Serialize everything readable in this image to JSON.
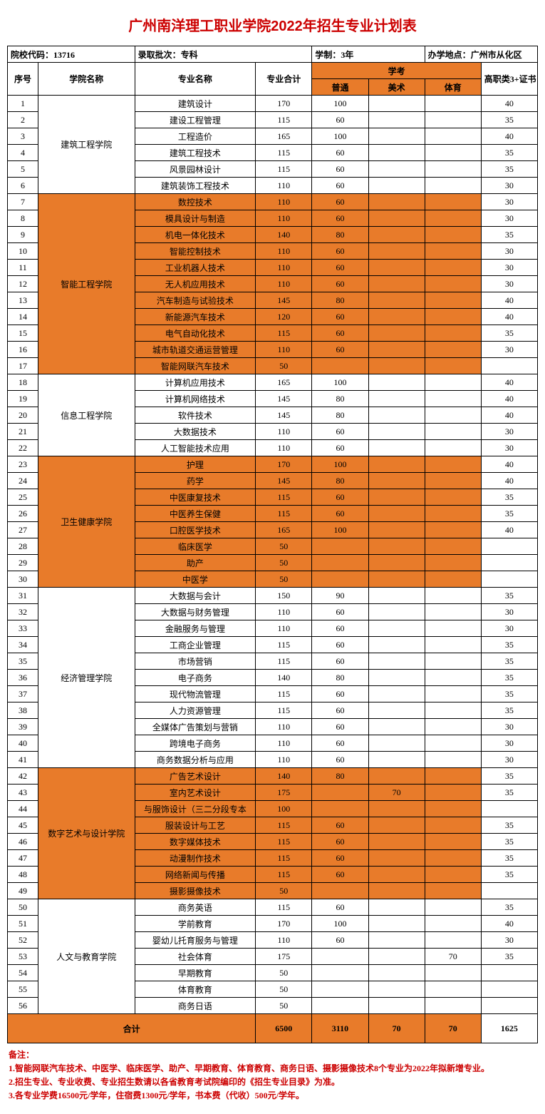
{
  "title": "广州南洋理工职业学院2022年招生专业计划表",
  "info": {
    "code_label": "院校代码：",
    "code": "13716",
    "batch_label": "录取批次：",
    "batch": "专科",
    "duration_label": "学制：",
    "duration": "3年",
    "location_label": "办学地点：",
    "location": "广州市从化区"
  },
  "headers": {
    "idx": "序号",
    "dept": "学院名称",
    "major": "专业名称",
    "total": "专业合计",
    "xuekao": "学考",
    "putong": "普通",
    "meishu": "美术",
    "tiyu": "体育",
    "cert": "高职类3+证书"
  },
  "depts": [
    {
      "name": "建筑工程学院",
      "hl": false,
      "rows": [
        {
          "i": "1",
          "m": "建筑设计",
          "t": "170",
          "p": "100",
          "ms": "",
          "ty": "",
          "c": "40"
        },
        {
          "i": "2",
          "m": "建设工程管理",
          "t": "115",
          "p": "60",
          "ms": "",
          "ty": "",
          "c": "35"
        },
        {
          "i": "3",
          "m": "工程造价",
          "t": "165",
          "p": "100",
          "ms": "",
          "ty": "",
          "c": "40"
        },
        {
          "i": "4",
          "m": "建筑工程技术",
          "t": "115",
          "p": "60",
          "ms": "",
          "ty": "",
          "c": "35"
        },
        {
          "i": "5",
          "m": "风景园林设计",
          "t": "115",
          "p": "60",
          "ms": "",
          "ty": "",
          "c": "35"
        },
        {
          "i": "6",
          "m": "建筑装饰工程技术",
          "t": "110",
          "p": "60",
          "ms": "",
          "ty": "",
          "c": "30"
        }
      ]
    },
    {
      "name": "智能工程学院",
      "hl": true,
      "rows": [
        {
          "i": "7",
          "m": "数控技术",
          "t": "110",
          "p": "60",
          "ms": "",
          "ty": "",
          "c": "30"
        },
        {
          "i": "8",
          "m": "模具设计与制造",
          "t": "110",
          "p": "60",
          "ms": "",
          "ty": "",
          "c": "30"
        },
        {
          "i": "9",
          "m": "机电一体化技术",
          "t": "140",
          "p": "80",
          "ms": "",
          "ty": "",
          "c": "35"
        },
        {
          "i": "10",
          "m": "智能控制技术",
          "t": "110",
          "p": "60",
          "ms": "",
          "ty": "",
          "c": "30"
        },
        {
          "i": "11",
          "m": "工业机器人技术",
          "t": "110",
          "p": "60",
          "ms": "",
          "ty": "",
          "c": "30"
        },
        {
          "i": "12",
          "m": "无人机应用技术",
          "t": "110",
          "p": "60",
          "ms": "",
          "ty": "",
          "c": "30"
        },
        {
          "i": "13",
          "m": "汽车制造与试验技术",
          "t": "145",
          "p": "80",
          "ms": "",
          "ty": "",
          "c": "40"
        },
        {
          "i": "14",
          "m": "新能源汽车技术",
          "t": "120",
          "p": "60",
          "ms": "",
          "ty": "",
          "c": "40"
        },
        {
          "i": "15",
          "m": "电气自动化技术",
          "t": "115",
          "p": "60",
          "ms": "",
          "ty": "",
          "c": "35"
        },
        {
          "i": "16",
          "m": "城市轨道交通运营管理",
          "t": "110",
          "p": "60",
          "ms": "",
          "ty": "",
          "c": "30"
        },
        {
          "i": "17",
          "m": "智能网联汽车技术",
          "t": "50",
          "p": "",
          "ms": "",
          "ty": "",
          "c": ""
        }
      ]
    },
    {
      "name": "信息工程学院",
      "hl": false,
      "rows": [
        {
          "i": "18",
          "m": "计算机应用技术",
          "t": "165",
          "p": "100",
          "ms": "",
          "ty": "",
          "c": "40"
        },
        {
          "i": "19",
          "m": "计算机网络技术",
          "t": "145",
          "p": "80",
          "ms": "",
          "ty": "",
          "c": "40"
        },
        {
          "i": "20",
          "m": "软件技术",
          "t": "145",
          "p": "80",
          "ms": "",
          "ty": "",
          "c": "40"
        },
        {
          "i": "21",
          "m": "大数据技术",
          "t": "110",
          "p": "60",
          "ms": "",
          "ty": "",
          "c": "30"
        },
        {
          "i": "22",
          "m": "人工智能技术应用",
          "t": "110",
          "p": "60",
          "ms": "",
          "ty": "",
          "c": "30"
        }
      ]
    },
    {
      "name": "卫生健康学院",
      "hl": true,
      "rows": [
        {
          "i": "23",
          "m": "护理",
          "t": "170",
          "p": "100",
          "ms": "",
          "ty": "",
          "c": "40"
        },
        {
          "i": "24",
          "m": "药学",
          "t": "145",
          "p": "80",
          "ms": "",
          "ty": "",
          "c": "40"
        },
        {
          "i": "25",
          "m": "中医康复技术",
          "t": "115",
          "p": "60",
          "ms": "",
          "ty": "",
          "c": "35"
        },
        {
          "i": "26",
          "m": "中医养生保健",
          "t": "115",
          "p": "60",
          "ms": "",
          "ty": "",
          "c": "35"
        },
        {
          "i": "27",
          "m": "口腔医学技术",
          "t": "165",
          "p": "100",
          "ms": "",
          "ty": "",
          "c": "40"
        },
        {
          "i": "28",
          "m": "临床医学",
          "t": "50",
          "p": "",
          "ms": "",
          "ty": "",
          "c": ""
        },
        {
          "i": "29",
          "m": "助产",
          "t": "50",
          "p": "",
          "ms": "",
          "ty": "",
          "c": ""
        },
        {
          "i": "30",
          "m": "中医学",
          "t": "50",
          "p": "",
          "ms": "",
          "ty": "",
          "c": ""
        }
      ]
    },
    {
      "name": "经济管理学院",
      "hl": false,
      "rows": [
        {
          "i": "31",
          "m": "大数据与会计",
          "t": "150",
          "p": "90",
          "ms": "",
          "ty": "",
          "c": "35"
        },
        {
          "i": "32",
          "m": "大数据与财务管理",
          "t": "110",
          "p": "60",
          "ms": "",
          "ty": "",
          "c": "30"
        },
        {
          "i": "33",
          "m": "金融服务与管理",
          "t": "110",
          "p": "60",
          "ms": "",
          "ty": "",
          "c": "30"
        },
        {
          "i": "34",
          "m": "工商企业管理",
          "t": "115",
          "p": "60",
          "ms": "",
          "ty": "",
          "c": "35"
        },
        {
          "i": "35",
          "m": "市场营销",
          "t": "115",
          "p": "60",
          "ms": "",
          "ty": "",
          "c": "35"
        },
        {
          "i": "36",
          "m": "电子商务",
          "t": "140",
          "p": "80",
          "ms": "",
          "ty": "",
          "c": "35"
        },
        {
          "i": "37",
          "m": "现代物流管理",
          "t": "115",
          "p": "60",
          "ms": "",
          "ty": "",
          "c": "35"
        },
        {
          "i": "38",
          "m": "人力资源管理",
          "t": "115",
          "p": "60",
          "ms": "",
          "ty": "",
          "c": "35"
        },
        {
          "i": "39",
          "m": "全媒体广告策划与营销",
          "t": "110",
          "p": "60",
          "ms": "",
          "ty": "",
          "c": "30"
        },
        {
          "i": "40",
          "m": "跨境电子商务",
          "t": "110",
          "p": "60",
          "ms": "",
          "ty": "",
          "c": "30"
        },
        {
          "i": "41",
          "m": "商务数据分析与应用",
          "t": "110",
          "p": "60",
          "ms": "",
          "ty": "",
          "c": "30"
        }
      ]
    },
    {
      "name": "数字艺术与设计学院",
      "hl": true,
      "rows": [
        {
          "i": "42",
          "m": "广告艺术设计",
          "t": "140",
          "p": "80",
          "ms": "",
          "ty": "",
          "c": "35"
        },
        {
          "i": "43",
          "m": "室内艺术设计",
          "t": "175",
          "p": "",
          "ms": "70",
          "ty": "",
          "c": "35"
        },
        {
          "i": "44",
          "m": "与服饰设计（三二分段专本",
          "t": "100",
          "p": "",
          "ms": "",
          "ty": "",
          "c": ""
        },
        {
          "i": "45",
          "m": "服装设计与工艺",
          "t": "115",
          "p": "60",
          "ms": "",
          "ty": "",
          "c": "35"
        },
        {
          "i": "46",
          "m": "数字媒体技术",
          "t": "115",
          "p": "60",
          "ms": "",
          "ty": "",
          "c": "35"
        },
        {
          "i": "47",
          "m": "动漫制作技术",
          "t": "115",
          "p": "60",
          "ms": "",
          "ty": "",
          "c": "35"
        },
        {
          "i": "48",
          "m": "网络新闻与传播",
          "t": "115",
          "p": "60",
          "ms": "",
          "ty": "",
          "c": "35"
        },
        {
          "i": "49",
          "m": "摄影摄像技术",
          "t": "50",
          "p": "",
          "ms": "",
          "ty": "",
          "c": ""
        }
      ]
    },
    {
      "name": "人文与教育学院",
      "hl": false,
      "rows": [
        {
          "i": "50",
          "m": "商务英语",
          "t": "115",
          "p": "60",
          "ms": "",
          "ty": "",
          "c": "35"
        },
        {
          "i": "51",
          "m": "学前教育",
          "t": "170",
          "p": "100",
          "ms": "",
          "ty": "",
          "c": "40"
        },
        {
          "i": "52",
          "m": "婴幼儿托育服务与管理",
          "t": "110",
          "p": "60",
          "ms": "",
          "ty": "",
          "c": "30"
        },
        {
          "i": "53",
          "m": "社会体育",
          "t": "175",
          "p": "",
          "ms": "",
          "ty": "70",
          "c": "35"
        },
        {
          "i": "54",
          "m": "早期教育",
          "t": "50",
          "p": "",
          "ms": "",
          "ty": "",
          "c": ""
        },
        {
          "i": "55",
          "m": "体育教育",
          "t": "50",
          "p": "",
          "ms": "",
          "ty": "",
          "c": ""
        },
        {
          "i": "56",
          "m": "商务日语",
          "t": "50",
          "p": "",
          "ms": "",
          "ty": "",
          "c": ""
        }
      ]
    }
  ],
  "totals": {
    "label": "合计",
    "t": "6500",
    "p": "3110",
    "ms": "70",
    "ty": "70",
    "c": "1625"
  },
  "notes": {
    "heading": "备注：",
    "lines": [
      "1.智能网联汽车技术、中医学、临床医学、助产、早期教育、体育教育、商务日语、摄影摄像技术8个专业为2022年拟新增专业。",
      "2.招生专业、专业收费、专业招生数请以各省教育考试院编印的《招生专业目录》为准。",
      "3.各专业学费16500元/学年，住宿费1300元/学年，书本费（代收）500元/学年。"
    ]
  }
}
